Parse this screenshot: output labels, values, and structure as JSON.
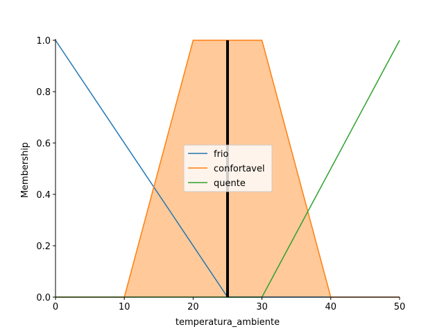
{
  "chart_data": {
    "type": "line",
    "xlabel": "temperatura_ambiente",
    "ylabel": "Membership",
    "xlim": [
      0,
      50
    ],
    "ylim": [
      0,
      1
    ],
    "xticks": [
      0,
      10,
      20,
      30,
      40,
      50
    ],
    "xtick_labels": [
      "0",
      "10",
      "20",
      "30",
      "40",
      "50"
    ],
    "yticks": [
      0,
      0.2,
      0.4,
      0.6,
      0.8,
      1.0
    ],
    "ytick_labels": [
      "0.0",
      "0.2",
      "0.4",
      "0.6",
      "0.8",
      "1.0"
    ],
    "grid": false,
    "legend_placement": "center",
    "series": [
      {
        "name": "frio",
        "color": "#1f77b4",
        "x": [
          0,
          25,
          50
        ],
        "y": [
          1,
          0,
          0
        ]
      },
      {
        "name": "confortavel",
        "color": "#ff7f0e",
        "x": [
          0,
          10,
          20,
          30,
          40,
          50
        ],
        "y": [
          0,
          0,
          1,
          1,
          0,
          0
        ],
        "filled": true,
        "fill_color": "#ffc999"
      },
      {
        "name": "quente",
        "color": "#2ca02c",
        "x": [
          0,
          30,
          50
        ],
        "y": [
          0,
          0,
          1
        ]
      }
    ],
    "marker_line": {
      "x": 25,
      "y_top": 1,
      "color": "#000000"
    }
  }
}
